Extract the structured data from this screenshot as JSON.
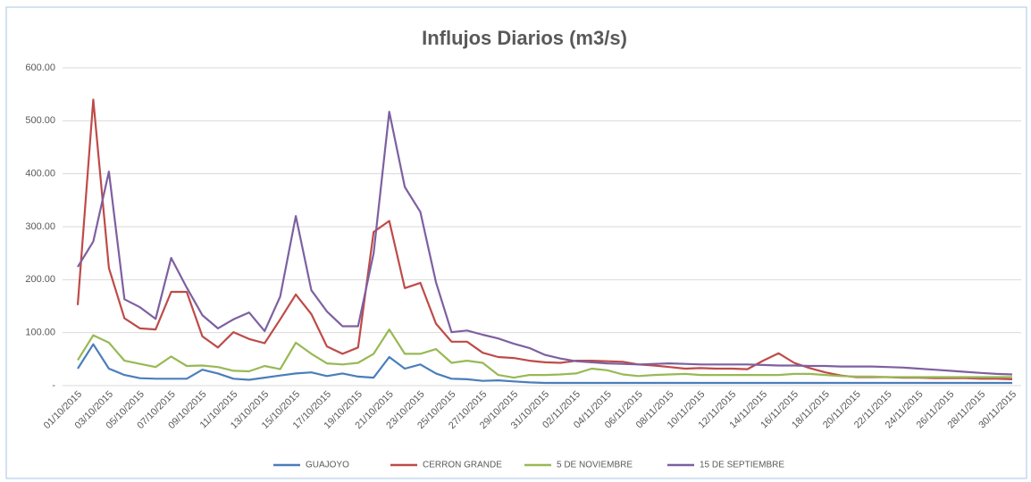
{
  "chart_data": {
    "type": "line",
    "title": "Influjos Diarios (m3/s)",
    "categories": [
      "01/10/2015",
      null,
      "03/10/2015",
      null,
      "05/10/2015",
      null,
      "07/10/2015",
      null,
      "09/10/2015",
      null,
      "11/10/2015",
      null,
      "13/10/2015",
      null,
      "15/10/2015",
      null,
      "17/10/2015",
      null,
      "19/10/2015",
      null,
      "21/10/2015",
      null,
      "23/10/2015",
      null,
      "25/10/2015",
      null,
      "27/10/2015",
      null,
      "29/10/2015",
      null,
      "31/10/2015",
      null,
      "02/11/2015",
      null,
      "04/11/2015",
      null,
      "06/11/2015",
      null,
      "08/11/2015",
      null,
      "10/11/2015",
      null,
      "12/11/2015",
      null,
      "14/11/2015",
      null,
      "16/11/2015",
      null,
      "18/11/2015",
      null,
      "20/11/2015",
      null,
      "22/11/2015",
      null,
      "24/11/2015",
      null,
      "26/11/2015",
      null,
      "28/11/2015",
      null,
      "30/11/2015"
    ],
    "series": [
      {
        "name": "GUAJOYO",
        "color": "#4a7ebb",
        "values": [
          32,
          78,
          32,
          20,
          14,
          13,
          13,
          13,
          30,
          23,
          13,
          11,
          15,
          19,
          23,
          25,
          18,
          23,
          17,
          15,
          54,
          32,
          40,
          23,
          13,
          12,
          9,
          10,
          8,
          6,
          5,
          5,
          5,
          5,
          5,
          5,
          5,
          5,
          5,
          5,
          5,
          5,
          5,
          5,
          5,
          5,
          5,
          5,
          5,
          5,
          5,
          5,
          5,
          5,
          5,
          5,
          5,
          5,
          5,
          5,
          5
        ]
      },
      {
        "name": "CERRON GRANDE",
        "color": "#be4b48",
        "values": [
          152,
          540,
          222,
          127,
          108,
          106,
          177,
          177,
          93,
          72,
          101,
          88,
          80,
          125,
          172,
          135,
          74,
          60,
          72,
          290,
          311,
          184,
          194,
          117,
          83,
          83,
          62,
          54,
          52,
          47,
          44,
          43,
          47,
          47,
          46,
          45,
          40,
          38,
          35,
          32,
          33,
          32,
          32,
          31,
          47,
          61,
          43,
          33,
          25,
          19,
          16,
          16,
          16,
          15,
          15,
          14,
          14,
          14,
          13,
          13,
          12
        ]
      },
      {
        "name": "5 DE NOVIEMBRE",
        "color": "#98b954",
        "values": [
          48,
          95,
          81,
          47,
          41,
          35,
          55,
          37,
          38,
          35,
          28,
          27,
          37,
          31,
          81,
          60,
          42,
          40,
          43,
          60,
          106,
          60,
          60,
          69,
          43,
          47,
          43,
          20,
          15,
          20,
          20,
          21,
          23,
          32,
          29,
          21,
          18,
          20,
          21,
          22,
          20,
          20,
          20,
          20,
          20,
          20,
          22,
          22,
          20,
          18,
          17,
          17,
          16,
          16,
          16,
          16,
          16,
          16,
          16,
          16,
          16
        ]
      },
      {
        "name": "15 DE SEPTIEMBRE",
        "color": "#7d60a0",
        "values": [
          224,
          272,
          404,
          163,
          148,
          126,
          241,
          185,
          133,
          108,
          125,
          138,
          103,
          168,
          320,
          180,
          140,
          112,
          112,
          250,
          517,
          375,
          328,
          195,
          101,
          104,
          96,
          89,
          79,
          71,
          58,
          51,
          46,
          44,
          42,
          41,
          40,
          41,
          42,
          41,
          40,
          40,
          40,
          40,
          39,
          38,
          38,
          37,
          37,
          36,
          36,
          36,
          35,
          34,
          32,
          30,
          28,
          26,
          24,
          22,
          21
        ]
      }
    ],
    "ylim": [
      0,
      600
    ],
    "yticks": [
      {
        "value": 0,
        "label": "-"
      },
      {
        "value": 100,
        "label": "100.00"
      },
      {
        "value": 200,
        "label": "200.00"
      },
      {
        "value": 300,
        "label": "300.00"
      },
      {
        "value": 400,
        "label": "400.00"
      },
      {
        "value": 500,
        "label": "500.00"
      },
      {
        "value": 600,
        "label": "600.00"
      }
    ],
    "grid": true,
    "legend": "bottom"
  }
}
